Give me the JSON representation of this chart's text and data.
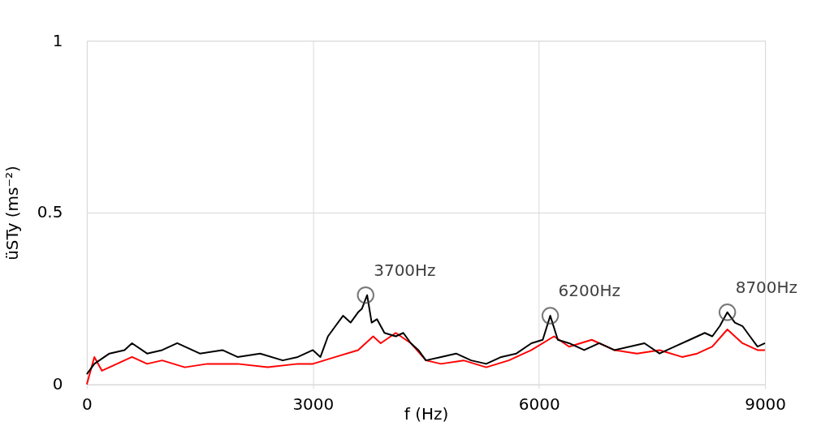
{
  "chart_data": {
    "type": "line",
    "xlabel": "f (Hz)",
    "ylabel": "üSTy (ms⁻²)",
    "xlim": [
      0,
      9000
    ],
    "xticks": [
      0,
      3000,
      6000,
      9000
    ],
    "ylim": [
      0,
      1
    ],
    "yticks": [
      0,
      0.5,
      1
    ],
    "grid": true,
    "marker": "none",
    "line_style": "solid",
    "series": [
      {
        "color": "#ff0000",
        "x": [
          0,
          100,
          200,
          400,
          600,
          800,
          1000,
          1300,
          1600,
          2000,
          2400,
          2800,
          3000,
          3300,
          3600,
          3800,
          3900,
          4100,
          4300,
          4500,
          4700,
          5000,
          5300,
          5600,
          5900,
          6200,
          6400,
          6700,
          7000,
          7300,
          7600,
          7900,
          8100,
          8300,
          8500,
          8700,
          8900,
          9000
        ],
        "values": [
          0.0,
          0.08,
          0.04,
          0.06,
          0.08,
          0.06,
          0.07,
          0.05,
          0.06,
          0.06,
          0.05,
          0.06,
          0.06,
          0.08,
          0.1,
          0.14,
          0.12,
          0.15,
          0.12,
          0.07,
          0.06,
          0.07,
          0.05,
          0.07,
          0.1,
          0.14,
          0.11,
          0.13,
          0.1,
          0.09,
          0.1,
          0.08,
          0.09,
          0.11,
          0.16,
          0.12,
          0.1,
          0.1
        ]
      },
      {
        "color": "#000000",
        "x": [
          0,
          100,
          300,
          500,
          600,
          800,
          1000,
          1200,
          1500,
          1800,
          2000,
          2300,
          2600,
          2800,
          3000,
          3100,
          3200,
          3300,
          3400,
          3500,
          3600,
          3650,
          3720,
          3780,
          3850,
          3950,
          4100,
          4200,
          4300,
          4400,
          4500,
          4700,
          4900,
          5100,
          5300,
          5500,
          5700,
          5900,
          6050,
          6150,
          6250,
          6400,
          6600,
          6800,
          7000,
          7200,
          7400,
          7600,
          7800,
          8000,
          8200,
          8300,
          8400,
          8500,
          8600,
          8700,
          8800,
          8900,
          9000
        ],
        "values": [
          0.03,
          0.06,
          0.09,
          0.1,
          0.12,
          0.09,
          0.1,
          0.12,
          0.09,
          0.1,
          0.08,
          0.09,
          0.07,
          0.08,
          0.1,
          0.08,
          0.14,
          0.17,
          0.2,
          0.18,
          0.21,
          0.22,
          0.26,
          0.18,
          0.19,
          0.15,
          0.14,
          0.15,
          0.12,
          0.1,
          0.07,
          0.08,
          0.09,
          0.07,
          0.06,
          0.08,
          0.09,
          0.12,
          0.13,
          0.2,
          0.13,
          0.12,
          0.1,
          0.12,
          0.1,
          0.11,
          0.12,
          0.09,
          0.11,
          0.13,
          0.15,
          0.14,
          0.17,
          0.21,
          0.18,
          0.17,
          0.14,
          0.11,
          0.12
        ]
      }
    ],
    "annotations": [
      {
        "text": "3700Hz",
        "x": 3700,
        "y": 0.26
      },
      {
        "text": "6200Hz",
        "x": 6150,
        "y": 0.2
      },
      {
        "text": "8700Hz",
        "x": 8500,
        "y": 0.21
      }
    ]
  }
}
